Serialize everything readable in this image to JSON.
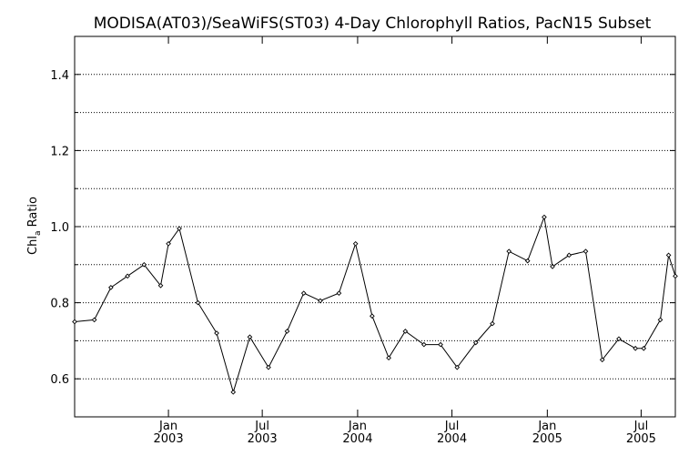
{
  "chart_data": {
    "type": "line",
    "title": "MODISA(AT03)/SeaWiFS(ST03) 4-Day Chlorophyll Ratios, PacN15 Subset",
    "ylabel": {
      "main": "Chl",
      "sub": "a",
      "rest": " Ratio"
    },
    "xlabel": "",
    "ylim": [
      0.5,
      1.5
    ],
    "xlim": [
      "2002-07-04",
      "2005-09-05"
    ],
    "grid": "horizontal-dotted",
    "y_ticks": [
      "0.6",
      "0.8",
      "1.0",
      "1.2",
      "1.4"
    ],
    "y_tick_values": [
      0.6,
      0.8,
      1.0,
      1.2,
      1.4
    ],
    "y_minor_grid_values": [
      0.7,
      0.9,
      1.1,
      1.3
    ],
    "x_ticks": [
      {
        "date": "2003-01-01",
        "month": "Jan",
        "year": "2003"
      },
      {
        "date": "2003-07-01",
        "month": "Jul",
        "year": "2003"
      },
      {
        "date": "2004-01-01",
        "month": "Jan",
        "year": "2004"
      },
      {
        "date": "2004-07-01",
        "month": "Jul",
        "year": "2004"
      },
      {
        "date": "2005-01-01",
        "month": "Jan",
        "year": "2005"
      },
      {
        "date": "2005-07-01",
        "month": "Jul",
        "year": "2005"
      }
    ],
    "series": [
      {
        "marker": "diamond",
        "color": "#000000",
        "points": [
          {
            "x": "2002-07-04",
            "y": 0.75
          },
          {
            "x": "2002-08-11",
            "y": 0.755
          },
          {
            "x": "2002-09-12",
            "y": 0.84
          },
          {
            "x": "2002-10-14",
            "y": 0.87
          },
          {
            "x": "2002-11-15",
            "y": 0.9
          },
          {
            "x": "2002-12-17",
            "y": 0.845
          },
          {
            "x": "2003-01-01",
            "y": 0.955
          },
          {
            "x": "2003-01-22",
            "y": 0.995
          },
          {
            "x": "2003-02-27",
            "y": 0.8
          },
          {
            "x": "2003-04-04",
            "y": 0.72
          },
          {
            "x": "2003-05-06",
            "y": 0.565
          },
          {
            "x": "2003-06-07",
            "y": 0.71
          },
          {
            "x": "2003-07-13",
            "y": 0.63
          },
          {
            "x": "2003-08-18",
            "y": 0.725
          },
          {
            "x": "2003-09-19",
            "y": 0.825
          },
          {
            "x": "2003-10-21",
            "y": 0.805
          },
          {
            "x": "2003-11-26",
            "y": 0.825
          },
          {
            "x": "2003-12-28",
            "y": 0.955
          },
          {
            "x": "2004-01-29",
            "y": 0.765
          },
          {
            "x": "2004-03-01",
            "y": 0.655
          },
          {
            "x": "2004-04-02",
            "y": 0.725
          },
          {
            "x": "2004-05-08",
            "y": 0.69
          },
          {
            "x": "2004-06-09",
            "y": 0.69
          },
          {
            "x": "2004-07-11",
            "y": 0.63
          },
          {
            "x": "2004-08-16",
            "y": 0.695
          },
          {
            "x": "2004-09-17",
            "y": 0.745
          },
          {
            "x": "2004-10-19",
            "y": 0.935
          },
          {
            "x": "2004-11-24",
            "y": 0.91
          },
          {
            "x": "2004-12-26",
            "y": 1.025
          },
          {
            "x": "2005-01-11",
            "y": 0.895
          },
          {
            "x": "2005-02-12",
            "y": 0.925
          },
          {
            "x": "2005-03-16",
            "y": 0.935
          },
          {
            "x": "2005-04-17",
            "y": 0.65
          },
          {
            "x": "2005-05-19",
            "y": 0.705
          },
          {
            "x": "2005-06-20",
            "y": 0.68
          },
          {
            "x": "2005-07-06",
            "y": 0.68
          },
          {
            "x": "2005-08-07",
            "y": 0.755
          },
          {
            "x": "2005-08-23",
            "y": 0.925
          },
          {
            "x": "2005-09-05",
            "y": 0.87
          }
        ]
      }
    ]
  }
}
